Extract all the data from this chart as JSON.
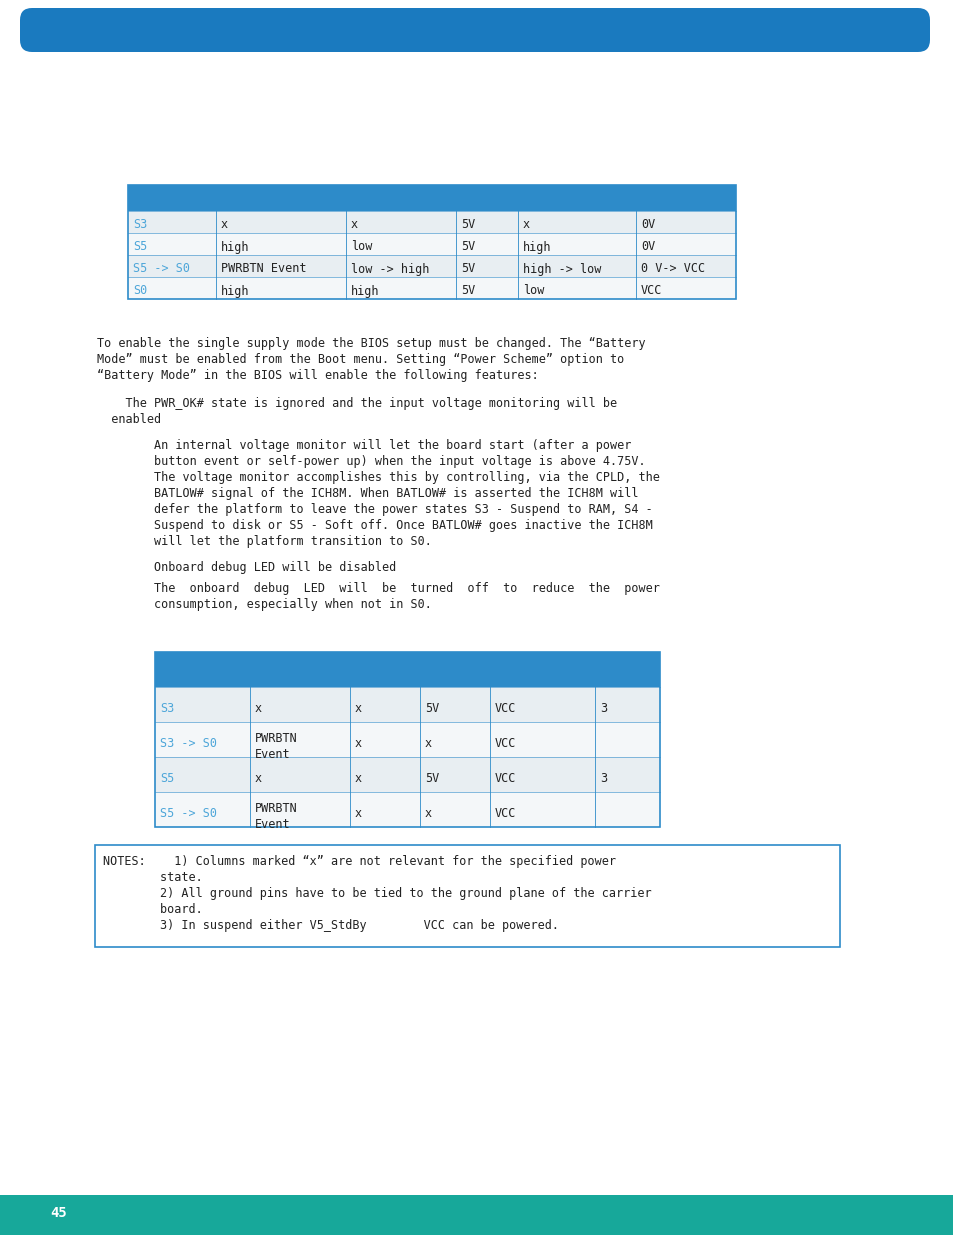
{
  "page_num": "45",
  "header_color": "#1a7abf",
  "teal_color": "#17a89a",
  "blue_link_color": "#4da6d9",
  "table_header_color": "#2d8bc9",
  "table_row_even": "#e8eef2",
  "table_row_odd": "#f4f7f9",
  "table_border_color": "#2d8bc9",
  "notes_border_color": "#2d8bc9",
  "text_color": "#222222",
  "table1_rows": [
    [
      "S3",
      "x",
      "x",
      "5V",
      "x",
      "0V"
    ],
    [
      "S5",
      "high",
      "low",
      "5V",
      "high",
      "0V"
    ],
    [
      "S5 -> S0",
      "PWRBTN Event",
      "low -> high",
      "5V",
      "high -> low",
      "0 V-> VCC"
    ],
    [
      "S0",
      "high",
      "high",
      "5V",
      "low",
      "VCC"
    ]
  ],
  "table2_rows": [
    [
      "S3",
      "x",
      "x",
      "5V",
      "VCC",
      "3"
    ],
    [
      "S3 -> S0",
      "PWRBTN\nEvent",
      "x",
      "x",
      "VCC",
      ""
    ],
    [
      "S5",
      "x",
      "x",
      "5V",
      "VCC",
      "3"
    ],
    [
      "S5 -> S0",
      "PWRBTN\nEvent",
      "x",
      "x",
      "VCC",
      ""
    ]
  ],
  "para_lines": [
    "To enable the single supply mode the BIOS setup must be changed. The “Battery",
    "Mode” must be enabled from the Boot menu. Setting “Power Scheme” option to",
    "“Battery Mode” in the BIOS will enable the following features:"
  ],
  "b1_lines": [
    "    The PWR_OK# state is ignored and the input voltage monitoring will be",
    "  enabled"
  ],
  "b2_lines": [
    "        An internal voltage monitor will let the board start (after a power",
    "        button event or self-power up) when the input voltage is above 4.75V.",
    "        The voltage monitor accomplishes this by controlling, via the CPLD, the",
    "        BATLOW# signal of the ICH8M. When BATLOW# is asserted the ICH8M will",
    "        defer the platform to leave the power states S3 - Suspend to RAM, S4 -",
    "        Suspend to disk or S5 - Soft off. Once BATLOW# goes inactive the ICH8M",
    "        will let the platform transition to S0."
  ],
  "b3_line": "        Onboard debug LED will be disabled",
  "b4_lines": [
    "        The  onboard  debug  LED  will  be  turned  off  to  reduce  the  power",
    "        consumption, especially when not in S0."
  ],
  "notes_lines": [
    "NOTES:    1) Columns marked “x” are not relevant for the specified power",
    "        state.",
    "        2) All ground pins have to be tied to the ground plane of the carrier",
    "        board.",
    "        3) In suspend either V5_StdBy        VCC can be powered."
  ],
  "font_size": 8.5,
  "mono_font": "monospace"
}
